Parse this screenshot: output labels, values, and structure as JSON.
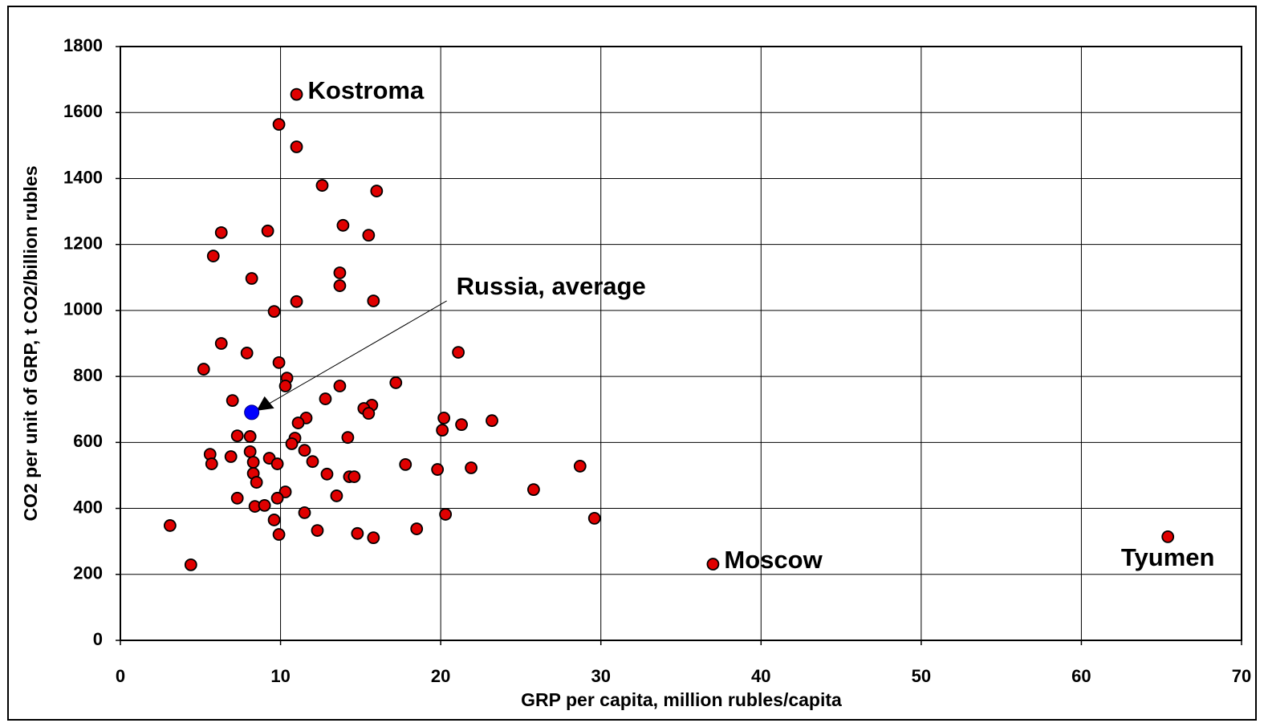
{
  "chart_data": {
    "type": "scatter",
    "x_label": "GRP per capita, million rubles/capita",
    "y_label": "CO2 per unit of GRP, t CO2/billion rubles",
    "xlim": [
      0,
      70
    ],
    "xticks": [
      0,
      10,
      20,
      30,
      40,
      50,
      60,
      70
    ],
    "ylim": [
      0,
      1800
    ],
    "yticks": [
      0,
      200,
      400,
      600,
      800,
      1000,
      1200,
      1400,
      1600,
      1800
    ],
    "grid": true,
    "series": [
      {
        "color": "#e00000",
        "x": [
          11.0,
          9.9,
          11.0,
          12.6,
          16.0,
          6.3,
          9.2,
          13.9,
          15.5,
          5.8,
          13.7,
          8.2,
          13.7,
          11.0,
          15.8,
          9.6,
          6.3,
          7.9,
          21.1,
          9.9,
          5.2,
          10.4,
          10.3,
          13.7,
          17.2,
          7.0,
          12.8,
          15.7,
          15.2,
          15.5,
          11.6,
          11.1,
          20.2,
          21.3,
          23.2,
          20.1,
          7.3,
          8.1,
          10.9,
          14.2,
          10.7,
          8.1,
          5.6,
          11.5,
          9.3,
          6.9,
          5.7,
          8.3,
          9.8,
          12.0,
          17.8,
          19.8,
          21.9,
          28.7,
          8.3,
          12.9,
          14.3,
          14.6,
          8.5,
          25.8,
          10.3,
          7.3,
          9.8,
          13.5,
          8.4,
          9.0,
          11.5,
          20.3,
          29.6,
          9.6,
          3.1,
          12.3,
          14.8,
          15.8,
          18.5,
          9.9,
          65.4,
          4.4,
          37.0
        ],
        "values": [
          1655,
          1564,
          1496,
          1379,
          1362,
          1236,
          1241,
          1258,
          1228,
          1165,
          1114,
          1097,
          1075,
          1027,
          1029,
          997,
          900,
          871,
          873,
          842,
          822,
          795,
          771,
          771,
          781,
          727,
          732,
          713,
          703,
          688,
          674,
          659,
          674,
          654,
          666,
          637,
          620,
          618,
          613,
          615,
          596,
          572,
          564,
          576,
          552,
          557,
          535,
          540,
          535,
          542,
          533,
          518,
          523,
          528,
          506,
          504,
          496,
          496,
          479,
          457,
          450,
          431,
          431,
          438,
          406,
          409,
          387,
          382,
          370,
          365,
          348,
          333,
          324,
          311,
          338,
          321,
          314,
          229,
          231
        ],
        "labels": [
          "Kostroma",
          null,
          null,
          null,
          null,
          null,
          null,
          null,
          null,
          null,
          null,
          null,
          null,
          null,
          null,
          null,
          null,
          null,
          null,
          null,
          null,
          null,
          null,
          null,
          null,
          null,
          null,
          null,
          null,
          null,
          null,
          null,
          null,
          null,
          null,
          null,
          null,
          null,
          null,
          null,
          null,
          null,
          null,
          null,
          null,
          null,
          null,
          null,
          null,
          null,
          null,
          null,
          null,
          null,
          null,
          null,
          null,
          null,
          null,
          null,
          null,
          null,
          null,
          null,
          null,
          null,
          null,
          null,
          null,
          null,
          null,
          null,
          null,
          null,
          null,
          null,
          "Tyumen",
          null,
          "Moscow"
        ]
      },
      {
        "color": "#0000ff",
        "x": [
          8.2
        ],
        "values": [
          691
        ],
        "labels": [
          "Russia, average"
        ]
      }
    ]
  }
}
